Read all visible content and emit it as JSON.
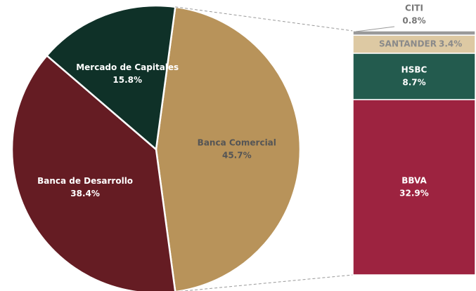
{
  "chart_data": {
    "type": "pie-of-bar",
    "categories": [
      "Banca Comercial",
      "Banca de Desarrollo",
      "Mercado de Capitales"
    ],
    "values": [
      45.7,
      38.4,
      15.8
    ],
    "value_labels": [
      "45.7%",
      "38.4%",
      "15.8%"
    ],
    "colors": [
      "#b8935a",
      "#651c23",
      "#0f3128"
    ],
    "bar": {
      "categories": [
        "BBVA",
        "HSBC",
        "SANTANDER",
        "CITI"
      ],
      "values": [
        32.9,
        8.7,
        3.4,
        0.8
      ],
      "value_labels": [
        "32.9%",
        "8.7%",
        "3.4%",
        "0.8%"
      ],
      "colors": [
        "#9d2340",
        "#235b4e",
        "#ddc9a3",
        "#999999"
      ]
    }
  }
}
